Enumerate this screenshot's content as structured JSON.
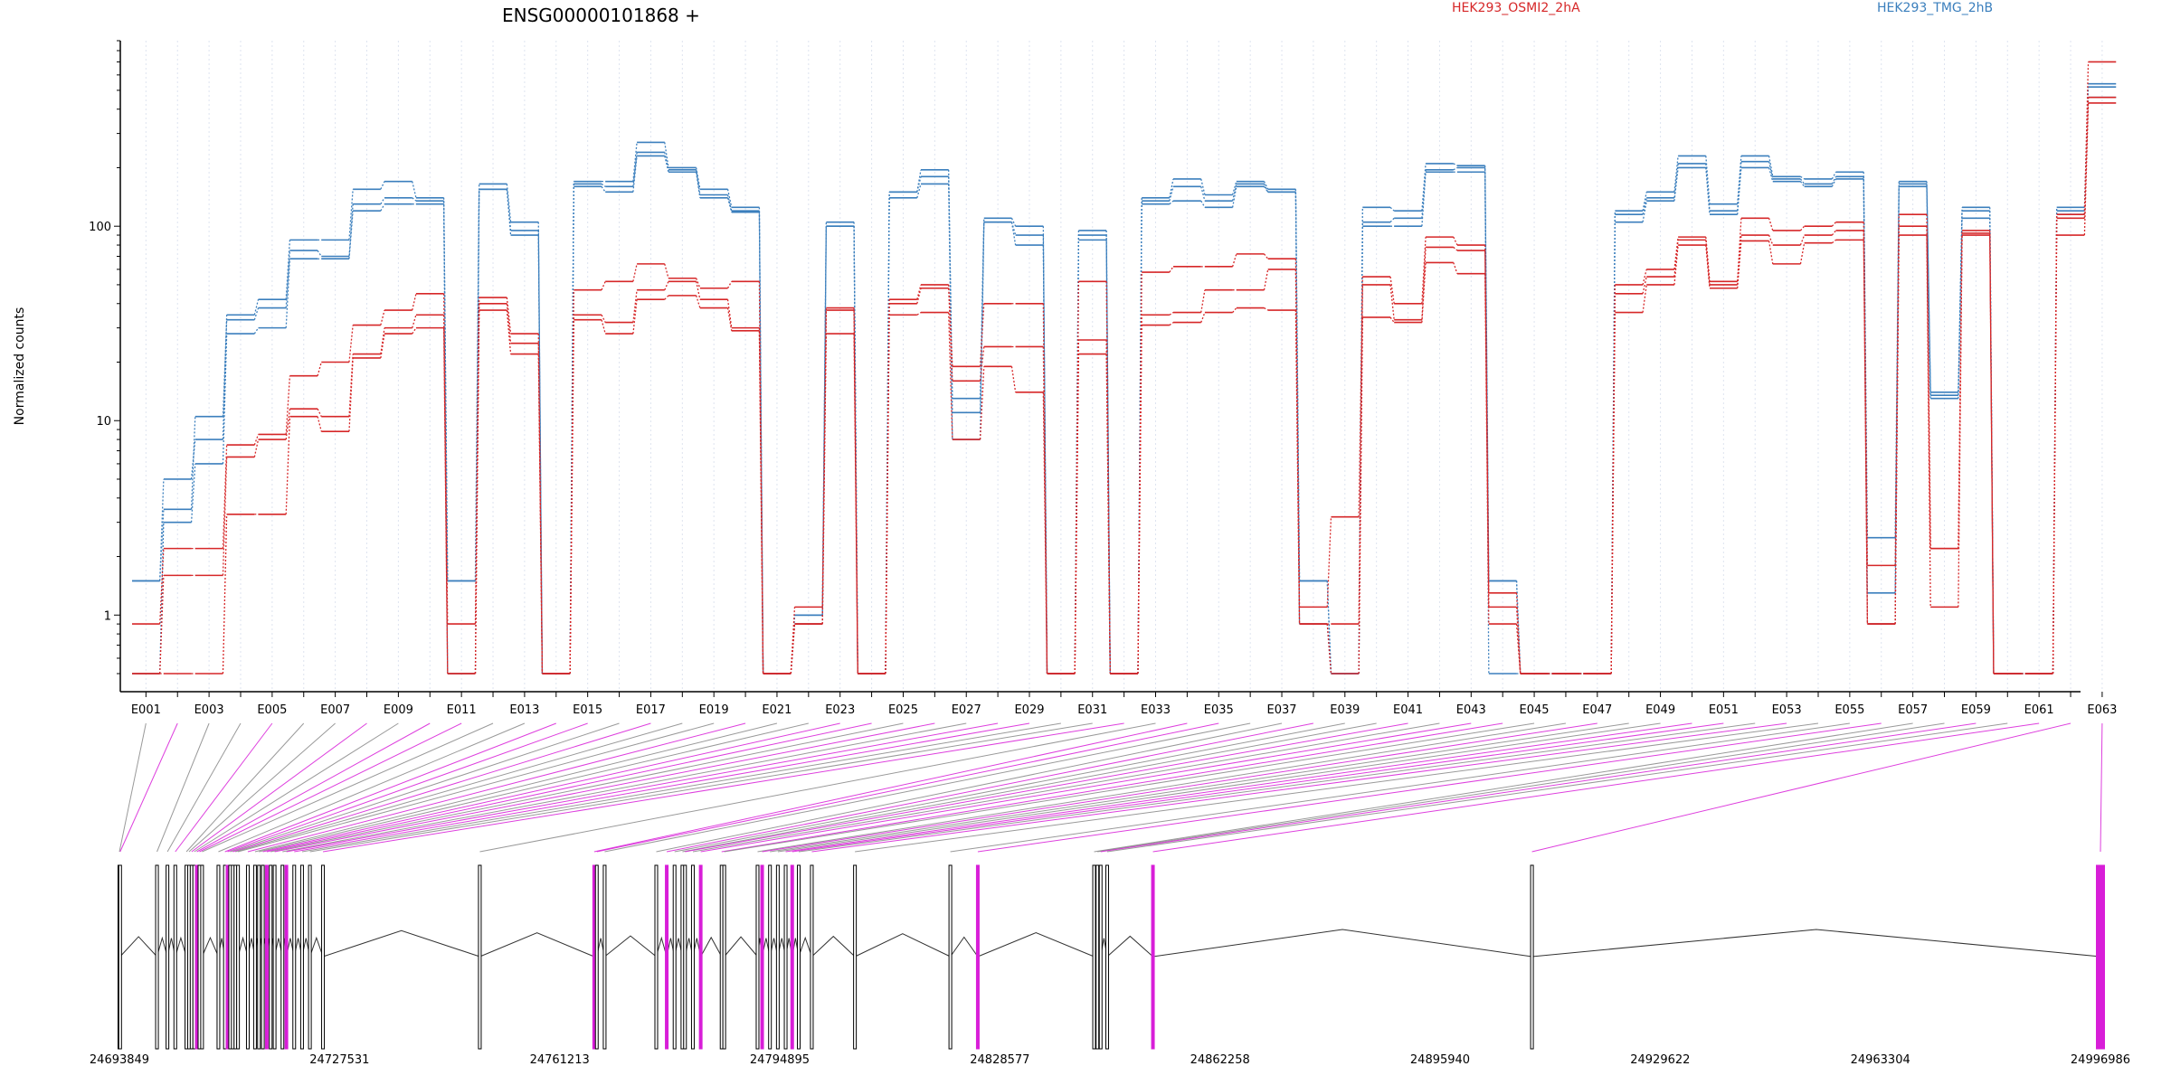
{
  "chart_data": {
    "type": "line",
    "title": "ENSG00000101868 +",
    "xlabel": "",
    "ylabel": "Normalized counts",
    "y_scale": "log",
    "ylim": [
      0.5,
      900
    ],
    "y_ticks": [
      {
        "value": 1,
        "label": "1"
      },
      {
        "value": 10,
        "label": "10"
      },
      {
        "value": 100,
        "label": "100"
      }
    ],
    "exon_tick_labels": [
      "E001",
      "E003",
      "E005",
      "E007",
      "E009",
      "E011",
      "E013",
      "E015",
      "E017",
      "E019",
      "E021",
      "E023",
      "E025",
      "E027",
      "E029",
      "E031",
      "E033",
      "E035",
      "E037",
      "E039",
      "E041",
      "E043",
      "E045",
      "E047",
      "E049",
      "E051",
      "E053",
      "E055",
      "E057",
      "E059",
      "E061",
      "E063"
    ],
    "legend": [
      {
        "label": "HEK293_OSMI2_2hA",
        "color": "#d62728"
      },
      {
        "label": "HEK293_TMG_2hB",
        "color": "#3b7fbd"
      }
    ],
    "series_colors": {
      "red": "#d62728",
      "blue": "#3b7fbd"
    },
    "series": [
      {
        "group": "blue",
        "values": [
          1.5,
          5,
          8,
          35,
          42,
          85,
          85,
          155,
          170,
          140,
          1.5,
          165,
          105,
          0.5,
          170,
          170,
          270,
          200,
          155,
          125,
          0.5,
          1,
          105,
          0.5,
          150,
          195,
          13,
          110,
          100,
          0.5,
          95,
          0.5,
          140,
          175,
          145,
          170,
          155,
          1.5,
          0.5,
          125,
          120,
          210,
          205,
          1.5,
          0.5,
          0.5,
          0.5,
          120,
          150,
          230,
          130,
          230,
          180,
          175,
          190,
          2.5,
          170,
          14,
          125,
          0.5,
          0.5,
          125,
          540
        ]
      },
      {
        "group": "blue",
        "values": [
          1.5,
          3.5,
          10.5,
          33,
          38,
          75,
          70,
          130,
          140,
          135,
          1.5,
          155,
          95,
          0.5,
          165,
          160,
          240,
          195,
          145,
          120,
          0.5,
          1,
          100,
          0.5,
          150,
          180,
          11,
          105,
          90,
          0.5,
          90,
          0.5,
          135,
          160,
          135,
          165,
          150,
          1.5,
          0.5,
          105,
          110,
          195,
          200,
          1.5,
          0.5,
          0.5,
          0.5,
          115,
          140,
          210,
          120,
          215,
          175,
          165,
          180,
          1.3,
          165,
          13.5,
          120,
          0.5,
          0.5,
          120,
          520
        ]
      },
      {
        "group": "blue",
        "values": [
          0.5,
          3,
          6,
          28,
          30,
          68,
          68,
          120,
          130,
          130,
          0.5,
          155,
          90,
          0.5,
          160,
          150,
          230,
          190,
          140,
          118,
          0.5,
          0.9,
          100,
          0.5,
          140,
          165,
          8,
          105,
          80,
          0.5,
          85,
          0.5,
          130,
          135,
          125,
          160,
          150,
          0.9,
          0.5,
          100,
          100,
          190,
          190,
          0.5,
          0.5,
          0.5,
          0.5,
          105,
          135,
          200,
          115,
          200,
          170,
          160,
          175,
          0.9,
          160,
          13,
          110,
          0.5,
          0.5,
          115,
          460
        ]
      },
      {
        "group": "red",
        "values": [
          0.9,
          2.2,
          2.2,
          7.5,
          8.5,
          17,
          20,
          31,
          37,
          45,
          0.9,
          43,
          28,
          0.5,
          47,
          52,
          64,
          54,
          48,
          52,
          0.5,
          1.1,
          38,
          0.5,
          42,
          50,
          19,
          40,
          40,
          0.5,
          52,
          0.5,
          58,
          62,
          62,
          72,
          68,
          1.1,
          3.2,
          55,
          40,
          88,
          80,
          1.3,
          0.5,
          0.5,
          0.5,
          50,
          60,
          88,
          52,
          110,
          95,
          100,
          105,
          1.8,
          115,
          2.2,
          95,
          0.5,
          0.5,
          115,
          700
        ]
      },
      {
        "group": "red",
        "values": [
          0.5,
          1.6,
          1.6,
          6.5,
          8,
          11.5,
          10.5,
          22,
          30,
          35,
          0.5,
          40,
          25,
          0.5,
          35,
          32,
          47,
          52,
          42,
          30,
          0.5,
          0.9,
          37,
          0.5,
          40,
          48,
          16,
          24,
          24,
          0.5,
          26,
          0.5,
          35,
          36,
          47,
          47,
          60,
          0.9,
          0.9,
          50,
          33,
          78,
          75,
          1.1,
          0.5,
          0.5,
          0.5,
          45,
          55,
          85,
          50,
          90,
          80,
          90,
          95,
          0.9,
          100,
          2.2,
          92,
          0.5,
          0.5,
          110,
          460
        ]
      },
      {
        "group": "red",
        "values": [
          0.5,
          0.5,
          0.5,
          3.3,
          3.3,
          10.5,
          8.8,
          21,
          28,
          30,
          0.5,
          37,
          22,
          0.5,
          33,
          28,
          42,
          44,
          38,
          29,
          0.5,
          0.9,
          28,
          0.5,
          35,
          36,
          8,
          19,
          14,
          0.5,
          22,
          0.5,
          31,
          32,
          36,
          38,
          37,
          0.9,
          0.5,
          34,
          32,
          65,
          57,
          0.9,
          0.5,
          0.5,
          0.5,
          36,
          50,
          80,
          48,
          84,
          64,
          82,
          85,
          0.9,
          90,
          1.1,
          90,
          0.5,
          0.5,
          90,
          430
        ]
      }
    ],
    "gene_model": {
      "genomic_tick_labels": [
        "24693849",
        "24727531",
        "24761213",
        "24794895",
        "24828577",
        "24862258",
        "24895940",
        "24929622",
        "24963304",
        "24996986"
      ],
      "genomic_tick_values": [
        24693849,
        24727531,
        24761213,
        24794895,
        24828577,
        24862258,
        24895940,
        24929622,
        24963304,
        24996986
      ],
      "exon_positions": [
        24693849,
        24693960,
        24699600,
        24701200,
        24702400,
        24704100,
        24704500,
        24704900,
        24705300,
        24705700,
        24706100,
        24706500,
        24709000,
        24710000,
        24710400,
        24710800,
        24711200,
        24711600,
        24712000,
        24713500,
        24714600,
        24715200,
        24715800,
        24716400,
        24717000,
        24717600,
        24718800,
        24719400,
        24720600,
        24721800,
        24723000,
        24725000,
        24749000,
        24766500,
        24766900,
        24768100,
        24776000,
        24777600,
        24778800,
        24780000,
        24780400,
        24781600,
        24782800,
        24786000,
        24786400,
        24791500,
        24792200,
        24793400,
        24794600,
        24795800,
        24796800,
        24797800,
        24799800,
        24806400,
        24821000,
        24825200,
        24843000,
        24843500,
        24844000,
        24845000,
        24852000,
        24910000,
        24996986
      ],
      "highlight_color": "#d81ed8",
      "highlight_indices": [
        9,
        14,
        23,
        27,
        33,
        37,
        42,
        46,
        50,
        55,
        60,
        62
      ]
    }
  }
}
